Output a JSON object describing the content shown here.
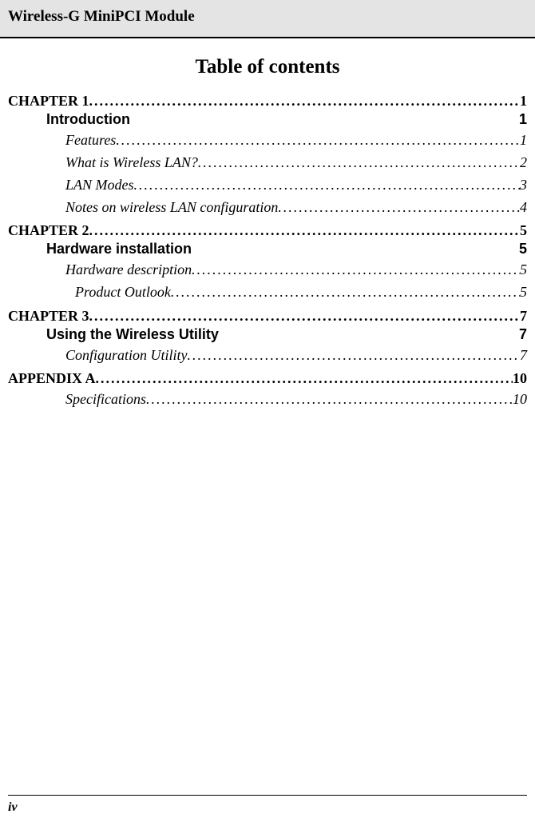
{
  "header": {
    "title": "Wireless-G MiniPCI Module"
  },
  "title": "Table of contents",
  "toc": [
    {
      "level": "chapter",
      "label": "CHAPTER 1 ",
      "page": "1"
    },
    {
      "level": "section",
      "label": "Introduction",
      "page": "1"
    },
    {
      "level": "sub",
      "label": "Features",
      "page": "1"
    },
    {
      "level": "sub",
      "label": "What is Wireless LAN?",
      "page": "2"
    },
    {
      "level": "sub",
      "label": "LAN Modes",
      "page": "3"
    },
    {
      "level": "sub",
      "label": "Notes on wireless LAN configuration",
      "page": "4"
    },
    {
      "level": "chapter",
      "label": "CHAPTER 2 ",
      "page": "5"
    },
    {
      "level": "section",
      "label": "Hardware installation",
      "page": "5"
    },
    {
      "level": "sub",
      "label": "Hardware description",
      "page": "5"
    },
    {
      "level": "subsub",
      "label": "Product Outlook",
      "page": "5"
    },
    {
      "level": "chapter",
      "label": "CHAPTER 3 ",
      "page": "7"
    },
    {
      "level": "section",
      "label": "Using the Wireless Utility",
      "page": "7"
    },
    {
      "level": "sub",
      "label": "Configuration Utility",
      "page": "7"
    },
    {
      "level": "chapter",
      "label": "APPENDIX A ",
      "page": "10"
    },
    {
      "level": "sub",
      "label": "Specifications",
      "page": "10"
    }
  ],
  "footer": {
    "page_number": "iv"
  }
}
